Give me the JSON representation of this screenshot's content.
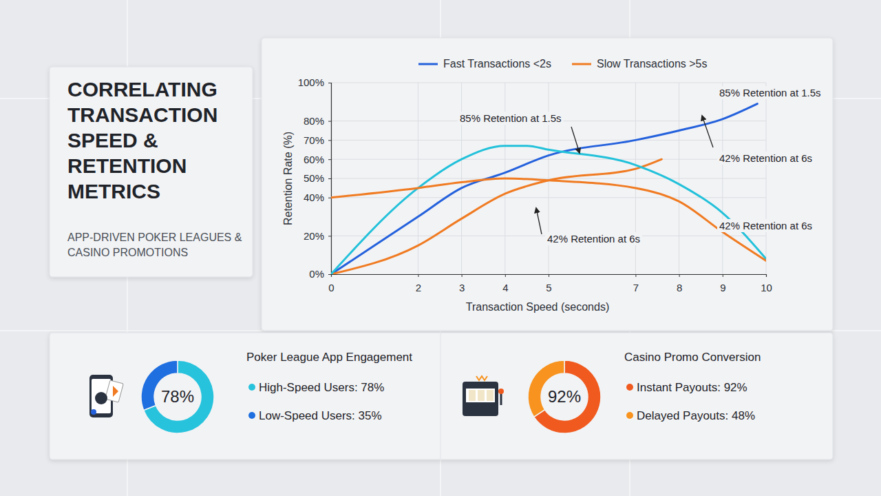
{
  "chart_data": [
    {
      "type": "line",
      "title": "CORRELATING TRANSACTION SPEED & RETENTION METRICS",
      "subtitle": "APP-DRIVEN POKER LEAGUES & CASINO PROMOTIONS",
      "x_label": "Transaction Speed (seconds)",
      "y_label": "Retention Rate (%)",
      "xlim": [
        0,
        10
      ],
      "xticks": [
        0,
        2,
        3,
        4,
        5,
        7,
        8,
        9,
        10
      ],
      "ylim": [
        0,
        100
      ],
      "yticks": [
        {
          "value": 0,
          "label": "0%"
        },
        {
          "value": 20,
          "label": "20%"
        },
        {
          "value": 40,
          "label": "40%"
        },
        {
          "value": 50,
          "label": "50%"
        },
        {
          "value": 60,
          "label": "60%"
        },
        {
          "value": 70,
          "label": "70%"
        },
        {
          "value": 80,
          "label": "80%"
        },
        {
          "value": 100,
          "label": "100%"
        }
      ],
      "grid": true,
      "legend": "top",
      "series": [
        {
          "name": "Fast Transactions <2s",
          "color": "#2461dc",
          "x": [
            0,
            2,
            3,
            4,
            5,
            7,
            8,
            9,
            9.8
          ],
          "values": [
            0,
            30,
            45,
            53,
            62,
            70,
            75,
            81,
            89
          ]
        },
        {
          "name": "Slow Transactions >5s",
          "color": "#f07b22",
          "x": [
            0,
            2,
            3,
            4,
            5,
            7,
            7.6
          ],
          "values": [
            0,
            15,
            29,
            42,
            49,
            55,
            60
          ]
        },
        {
          "color": "#22c1da",
          "x": [
            0,
            2,
            3,
            4,
            4.5,
            5,
            7,
            8,
            9,
            10
          ],
          "values": [
            0,
            45,
            60,
            67,
            67,
            65,
            57,
            47,
            32,
            8
          ]
        },
        {
          "color": "#f07b22",
          "x": [
            0,
            2,
            3,
            4,
            5,
            7,
            8,
            9,
            10
          ],
          "values": [
            40,
            45,
            48,
            50,
            49,
            45,
            38,
            22,
            7
          ]
        }
      ],
      "annotations": [
        "85% Retention at 1.5s",
        "85% Retention at 1.5s",
        "42% Retention at 6s",
        "42% Retention at 6s",
        "42% Retention at 6s"
      ]
    },
    {
      "type": "donut",
      "title": "Poker League App Engagement",
      "categories": [
        "High-Speed Users: 78%",
        "Low-Speed Users: 35%"
      ],
      "values": [
        78,
        35
      ],
      "colors": [
        "#27c3dd",
        "#1f6fe0"
      ],
      "center_label": "78%"
    },
    {
      "type": "donut",
      "title": "Casino Promo Conversion",
      "categories": [
        "Instant Payouts: 92%",
        "Delayed Payouts: 48%"
      ],
      "values": [
        92,
        48
      ],
      "colors": [
        "#f05a1e",
        "#f7931e"
      ],
      "center_label": "92%"
    }
  ]
}
